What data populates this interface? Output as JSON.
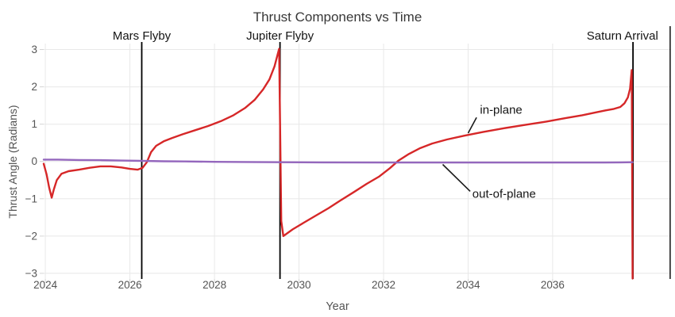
{
  "chart_data": {
    "type": "line",
    "title": "Thrust Components vs Time",
    "xlabel": "Year",
    "ylabel": "Thrust Angle (Radians)",
    "xlim": [
      2023.96,
      2038.8
    ],
    "ylim": [
      -3.15,
      3.16
    ],
    "grid": true,
    "xticks": [
      2024,
      2026,
      2028,
      2030,
      2032,
      2034,
      2036
    ],
    "xtick_labels": [
      "2024",
      "2026",
      "2028",
      "2030",
      "2032",
      "2034",
      "2036"
    ],
    "yticks": [
      -3,
      -2,
      -1,
      0,
      1,
      2,
      3
    ],
    "ytick_labels": [
      "−3",
      "−2",
      "−1",
      "0",
      "1",
      "2",
      "3"
    ],
    "colors": {
      "in_plane": "#d62728",
      "out_of_plane": "#9467bd",
      "event_line": "#000000",
      "end_line": "#111111",
      "grid": "#e8e8e8",
      "tick": "#d4d4d4",
      "tick_label": "#545454",
      "text": "#141414",
      "title": "#383838"
    },
    "events": [
      {
        "label": "Mars Flyby",
        "x": 2026.28
      },
      {
        "label": "Jupiter Flyby",
        "x": 2029.55
      },
      {
        "label": "Saturn Arrival",
        "x": 2037.9,
        "label_x": 2037.65
      }
    ],
    "end_line_x": 2038.78,
    "annotations": [
      {
        "label": "in-plane",
        "text_x": 2034.28,
        "text_y": 1.28,
        "line": [
          [
            2034.0,
            0.76
          ],
          [
            2034.2,
            1.18
          ]
        ]
      },
      {
        "label": "out-of-plane",
        "text_x": 2034.1,
        "text_y": -0.97,
        "line": [
          [
            2033.4,
            -0.08
          ],
          [
            2034.05,
            -0.8
          ]
        ]
      }
    ],
    "series": [
      {
        "name": "in-plane",
        "color": "#d62728",
        "points": [
          [
            2023.96,
            -0.06
          ],
          [
            2024.03,
            -0.35
          ],
          [
            2024.09,
            -0.7
          ],
          [
            2024.15,
            -0.97
          ],
          [
            2024.2,
            -0.75
          ],
          [
            2024.27,
            -0.5
          ],
          [
            2024.38,
            -0.33
          ],
          [
            2024.55,
            -0.26
          ],
          [
            2024.8,
            -0.22
          ],
          [
            2025.05,
            -0.17
          ],
          [
            2025.3,
            -0.13
          ],
          [
            2025.55,
            -0.13
          ],
          [
            2025.8,
            -0.16
          ],
          [
            2026.0,
            -0.2
          ],
          [
            2026.18,
            -0.22
          ],
          [
            2026.3,
            -0.17
          ],
          [
            2026.4,
            -0.02
          ],
          [
            2026.5,
            0.25
          ],
          [
            2026.62,
            0.42
          ],
          [
            2026.8,
            0.54
          ],
          [
            2027.0,
            0.63
          ],
          [
            2027.25,
            0.73
          ],
          [
            2027.55,
            0.84
          ],
          [
            2027.85,
            0.95
          ],
          [
            2028.15,
            1.08
          ],
          [
            2028.45,
            1.24
          ],
          [
            2028.72,
            1.43
          ],
          [
            2028.95,
            1.65
          ],
          [
            2029.15,
            1.93
          ],
          [
            2029.3,
            2.2
          ],
          [
            2029.42,
            2.55
          ],
          [
            2029.53,
            3.02
          ],
          [
            2029.58,
            -1.6
          ],
          [
            2029.63,
            -2.0
          ],
          [
            2029.85,
            -1.82
          ],
          [
            2030.1,
            -1.65
          ],
          [
            2030.4,
            -1.45
          ],
          [
            2030.7,
            -1.25
          ],
          [
            2031.0,
            -1.03
          ],
          [
            2031.3,
            -0.82
          ],
          [
            2031.6,
            -0.6
          ],
          [
            2031.9,
            -0.4
          ],
          [
            2032.15,
            -0.18
          ],
          [
            2032.35,
            0.02
          ],
          [
            2032.6,
            0.2
          ],
          [
            2032.85,
            0.35
          ],
          [
            2033.15,
            0.48
          ],
          [
            2033.5,
            0.59
          ],
          [
            2033.9,
            0.69
          ],
          [
            2034.35,
            0.79
          ],
          [
            2034.85,
            0.89
          ],
          [
            2035.35,
            0.98
          ],
          [
            2035.85,
            1.07
          ],
          [
            2036.3,
            1.16
          ],
          [
            2036.7,
            1.24
          ],
          [
            2037.0,
            1.31
          ],
          [
            2037.25,
            1.37
          ],
          [
            2037.45,
            1.41
          ],
          [
            2037.6,
            1.46
          ],
          [
            2037.7,
            1.56
          ],
          [
            2037.78,
            1.72
          ],
          [
            2037.83,
            1.95
          ],
          [
            2037.87,
            2.45
          ],
          [
            2037.89,
            -3.14
          ]
        ]
      },
      {
        "name": "out-of-plane",
        "color": "#9467bd",
        "points": [
          [
            2023.96,
            0.05
          ],
          [
            2024.3,
            0.05
          ],
          [
            2024.8,
            0.04
          ],
          [
            2025.3,
            0.035
          ],
          [
            2025.8,
            0.025
          ],
          [
            2026.3,
            0.015
          ],
          [
            2026.8,
            0.005
          ],
          [
            2027.3,
            0.0
          ],
          [
            2028.0,
            -0.01
          ],
          [
            2028.7,
            -0.015
          ],
          [
            2029.55,
            -0.02
          ],
          [
            2030.5,
            -0.025
          ],
          [
            2032.0,
            -0.03
          ],
          [
            2034.0,
            -0.03
          ],
          [
            2036.0,
            -0.03
          ],
          [
            2037.0,
            -0.03
          ],
          [
            2037.6,
            -0.025
          ],
          [
            2037.89,
            -0.02
          ]
        ]
      }
    ]
  }
}
